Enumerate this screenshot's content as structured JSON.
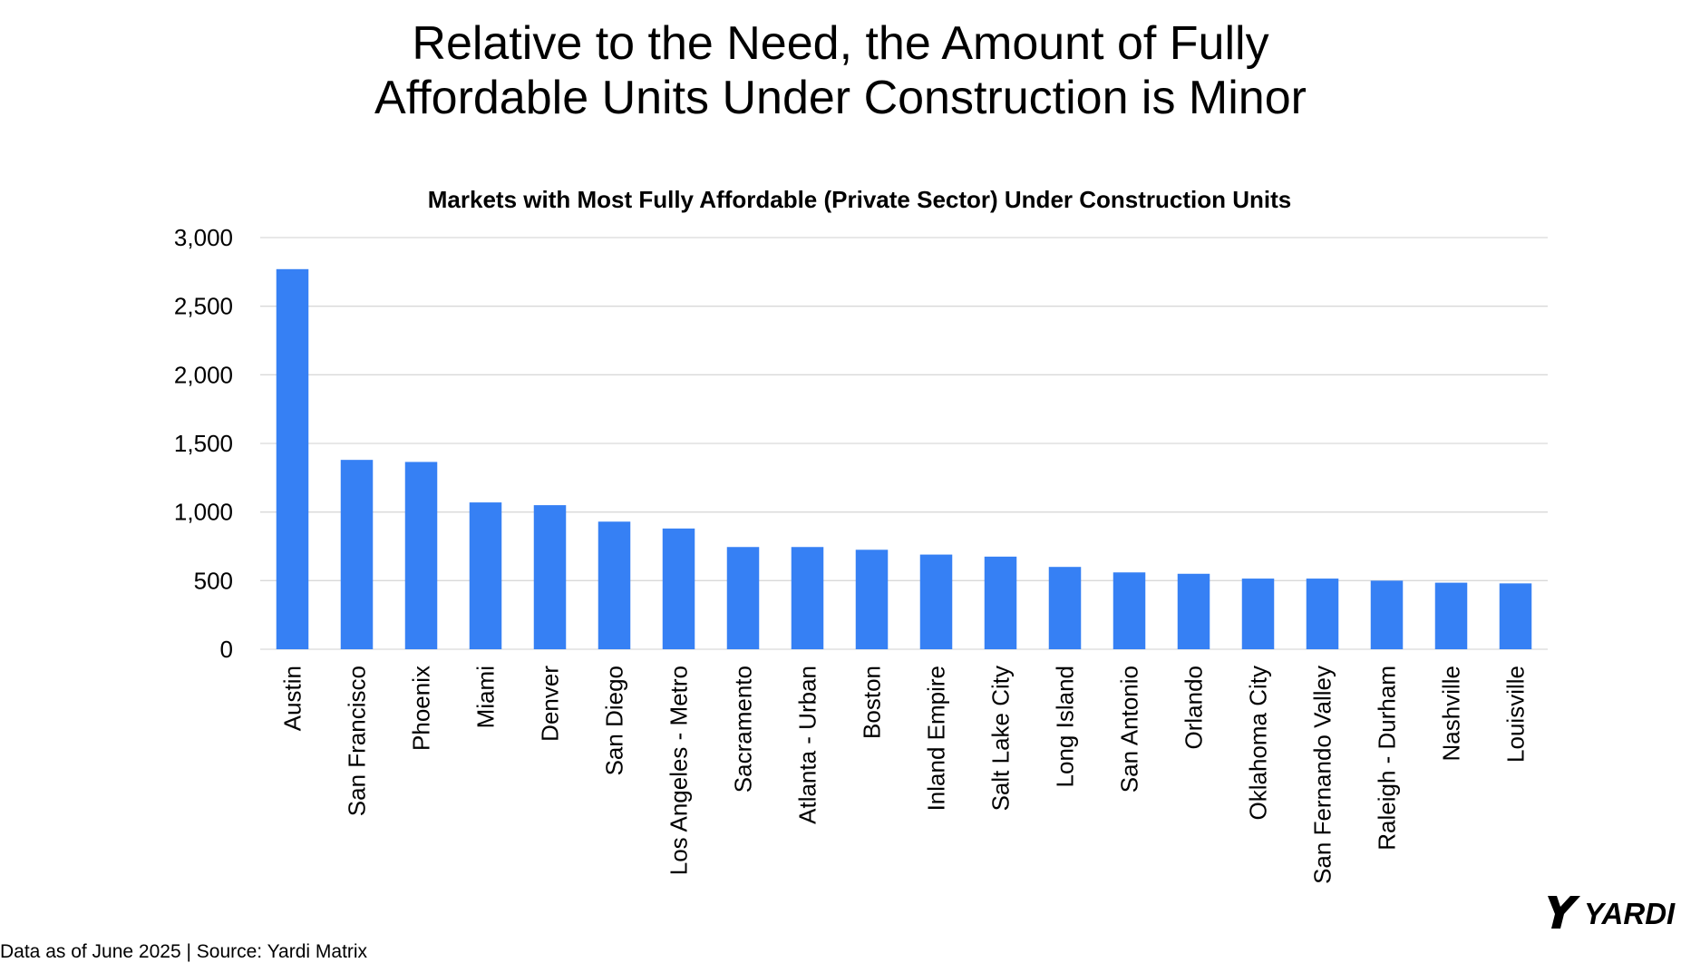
{
  "page": {
    "title_lines": [
      "Relative to the Need, the Amount of Fully",
      "Affordable Units Under Construction is Minor"
    ],
    "footer": "Data as of June 2025 | Source: Yardi Matrix",
    "logo_text": "YARDI"
  },
  "chart_data": {
    "type": "bar",
    "title": "Markets with Most Fully Affordable (Private Sector) Under Construction Units",
    "xlabel": "",
    "ylabel": "",
    "categories": [
      "Austin",
      "San Francisco",
      "Phoenix",
      "Miami",
      "Denver",
      "San Diego",
      "Los Angeles - Metro",
      "Sacramento",
      "Atlanta - Urban",
      "Boston",
      "Inland Empire",
      "Salt Lake City",
      "Long Island",
      "San Antonio",
      "Orlando",
      "Oklahoma City",
      "San Fernando Valley",
      "Raleigh - Durham",
      "Nashville",
      "Louisville"
    ],
    "values": [
      2770,
      1380,
      1365,
      1070,
      1050,
      930,
      880,
      745,
      745,
      725,
      690,
      675,
      600,
      560,
      550,
      515,
      515,
      500,
      485,
      480
    ],
    "ylim": [
      0,
      3000
    ],
    "yticks": [
      0,
      500,
      1000,
      1500,
      2000,
      2500,
      3000
    ],
    "ytick_labels": [
      "0",
      "500",
      "1,000",
      "1,500",
      "2,000",
      "2,500",
      "3,000"
    ],
    "grid": true,
    "legend": "none",
    "bar_color": "#3680f4",
    "grid_color": "#d9d9d9"
  }
}
